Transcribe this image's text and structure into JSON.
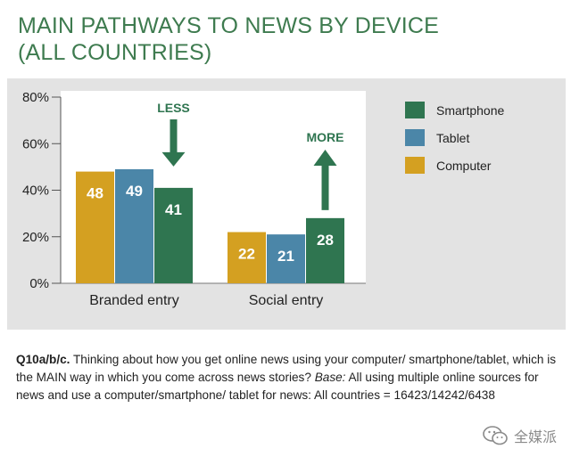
{
  "title": {
    "line1": "MAIN PATHWAYS TO NEWS BY DEVICE",
    "line2": "(ALL COUNTRIES)"
  },
  "colors": {
    "title": "#3e7b4f",
    "Computer": "#d4a021",
    "Tablet": "#4b86a8",
    "Smartphone": "#2f7550",
    "arrow": "#2f7550",
    "panel": "#e3e3e3"
  },
  "chart_data": {
    "type": "bar",
    "title": "MAIN PATHWAYS TO NEWS BY DEVICE (ALL COUNTRIES)",
    "categories": [
      "Branded entry",
      "Social entry"
    ],
    "series": [
      {
        "name": "Computer",
        "values": [
          48,
          22
        ]
      },
      {
        "name": "Tablet",
        "values": [
          49,
          21
        ]
      },
      {
        "name": "Smartphone",
        "values": [
          41,
          28
        ]
      }
    ],
    "yticks": [
      "0%",
      "20%",
      "40%",
      "60%",
      "80%"
    ],
    "ylim": [
      0,
      80
    ],
    "grid": false,
    "legend": "right",
    "legend_order": [
      "Smartphone",
      "Tablet",
      "Computer"
    ],
    "annotations": [
      {
        "text": "LESS",
        "category": "Branded entry",
        "series": "Smartphone",
        "arrow": "down"
      },
      {
        "text": "MORE",
        "category": "Social entry",
        "series": "Smartphone",
        "arrow": "up"
      }
    ]
  },
  "note": {
    "q_label": "Q10a/b/c.",
    "q_text": " Thinking about how you get online news using your computer/ smartphone/tablet, which is the MAIN way in which you come across news stories?",
    "base_label": "Base:",
    "base_text": " All using multiple online sources for news and use a computer/smartphone/ tablet for news: All countries = 16423/14242/6438"
  },
  "watermark": {
    "text": "全媒派",
    "icon": "wechat-logo-icon"
  }
}
